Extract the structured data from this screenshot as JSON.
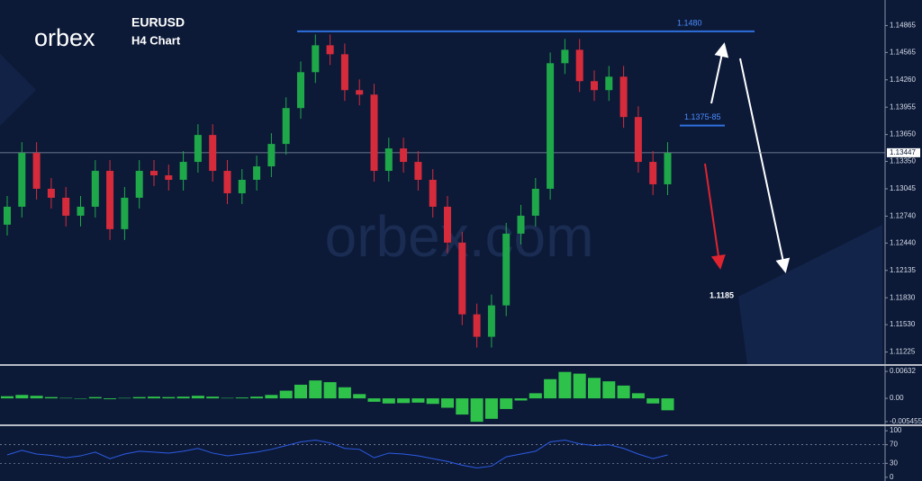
{
  "chart_data": [
    {
      "type": "candlestick",
      "brand": "orbex",
      "title": "EURUSD",
      "subtitle": "H4 Chart",
      "watermark": "orbex.com",
      "up_color": "#1fa84a",
      "down_color": "#d62b3b",
      "open": [
        1.12645,
        1.12845,
        1.13445,
        1.13045,
        1.12945,
        1.12745,
        1.12845,
        1.13245,
        1.12595,
        1.12945,
        1.13245,
        1.13195,
        1.13145,
        1.13345,
        1.13645,
        1.13245,
        1.12995,
        1.13145,
        1.13295,
        1.13545,
        1.13945,
        1.14345,
        1.14645,
        1.14545,
        1.14145,
        1.14095,
        1.13245,
        1.13495,
        1.13345,
        1.13145,
        1.12845,
        1.12445,
        1.11645,
        1.11395,
        1.11745,
        1.12545,
        1.12745,
        1.13045,
        1.14445,
        1.14595,
        1.14245,
        1.14145,
        1.14295,
        1.13845,
        1.13345,
        1.13095
      ],
      "high": [
        1.12965,
        1.13565,
        1.13565,
        1.13165,
        1.13065,
        1.12965,
        1.13365,
        1.13365,
        1.13065,
        1.13365,
        1.13365,
        1.13315,
        1.13465,
        1.13765,
        1.13765,
        1.13365,
        1.13265,
        1.13415,
        1.13665,
        1.14065,
        1.14465,
        1.14765,
        1.14765,
        1.14665,
        1.14265,
        1.14215,
        1.13615,
        1.13615,
        1.13465,
        1.13265,
        1.12965,
        1.12565,
        1.11765,
        1.11865,
        1.12665,
        1.12865,
        1.13165,
        1.14565,
        1.14715,
        1.14715,
        1.14365,
        1.14415,
        1.14415,
        1.13965,
        1.13465,
        1.13565
      ],
      "low": [
        1.12525,
        1.12725,
        1.12925,
        1.12825,
        1.12625,
        1.12625,
        1.12725,
        1.12475,
        1.12475,
        1.12825,
        1.13075,
        1.13025,
        1.13025,
        1.13225,
        1.13125,
        1.12875,
        1.12875,
        1.13025,
        1.13175,
        1.13425,
        1.13825,
        1.14225,
        1.14425,
        1.14025,
        1.13975,
        1.13125,
        1.13125,
        1.13225,
        1.13025,
        1.12725,
        1.12325,
        1.11525,
        1.11275,
        1.11275,
        1.11625,
        1.12425,
        1.12625,
        1.12925,
        1.14325,
        1.14125,
        1.14025,
        1.14025,
        1.13725,
        1.13225,
        1.12975,
        1.12975
      ],
      "close": [
        1.12845,
        1.13445,
        1.13045,
        1.12945,
        1.12745,
        1.12845,
        1.13245,
        1.12595,
        1.12945,
        1.13245,
        1.13195,
        1.13145,
        1.13345,
        1.13645,
        1.13245,
        1.12995,
        1.13145,
        1.13295,
        1.13545,
        1.13945,
        1.14345,
        1.14645,
        1.14545,
        1.14145,
        1.14095,
        1.13245,
        1.13495,
        1.13345,
        1.13145,
        1.12845,
        1.12445,
        1.11645,
        1.11395,
        1.11745,
        1.12545,
        1.12745,
        1.13045,
        1.14445,
        1.14595,
        1.14245,
        1.14145,
        1.14295,
        1.13845,
        1.13345,
        1.13095,
        1.13445
      ],
      "ylim": [
        1.1109,
        1.1515
      ],
      "yticks": [
        1.14865,
        1.14565,
        {
          "value": 1.1426,
          "label": "1.14260"
        },
        1.13955,
        {
          "value": 1.1365,
          "label": "1.13650"
        },
        {
          "value": 1.1335,
          "label": "1.13350"
        },
        1.13045,
        {
          "value": 1.1274,
          "label": "1.12740"
        },
        {
          "value": 1.1244,
          "label": "1.12440"
        },
        1.12135,
        {
          "value": 1.1183,
          "label": "1.11830"
        },
        {
          "value": 1.1153,
          "label": "1.11530"
        },
        1.11225
      ],
      "last_price": 1.13447,
      "resistance": {
        "value": 1.148,
        "label": "1.1480"
      },
      "zone": {
        "value": 1.1375,
        "label": "1.1375-85"
      },
      "target": 1.1185
    },
    {
      "type": "histogram",
      "color": "#2fc24a",
      "values": [
        0.0005,
        0.0008,
        0.0006,
        0.0003,
        0.0001,
        0,
        0.0003,
        -0.0002,
        0.0001,
        0.0003,
        0.0004,
        0.0003,
        0.0004,
        0.0006,
        0.0004,
        0.0001,
        0.0002,
        0.0004,
        0.0008,
        0.0018,
        0.0032,
        0.0042,
        0.0038,
        0.0026,
        0.001,
        -0.0008,
        -0.0012,
        -0.0011,
        -0.001,
        -0.0013,
        -0.0022,
        -0.0038,
        -0.0055,
        -0.0048,
        -0.0025,
        -0.0005,
        0.0012,
        0.0045,
        0.0062,
        0.0058,
        0.0048,
        0.004,
        0.003,
        0.0012,
        -0.0012,
        -0.0028
      ],
      "ylim": [
        -0.0061,
        0.0074
      ],
      "yticks": [
        0.00632,
        {
          "value": 0,
          "label": "0.00"
        },
        -0.005455
      ]
    },
    {
      "type": "line",
      "color": "#2d5be3",
      "values": [
        48,
        58,
        50,
        47,
        42,
        46,
        54,
        40,
        50,
        56,
        54,
        52,
        56,
        62,
        52,
        46,
        50,
        54,
        60,
        68,
        76,
        80,
        74,
        62,
        60,
        42,
        52,
        50,
        46,
        40,
        34,
        26,
        20,
        24,
        44,
        50,
        56,
        76,
        80,
        72,
        68,
        70,
        62,
        50,
        40,
        48
      ],
      "ylim": [
        -8,
        106
      ],
      "yticks": [
        100,
        70,
        30,
        0
      ]
    }
  ]
}
